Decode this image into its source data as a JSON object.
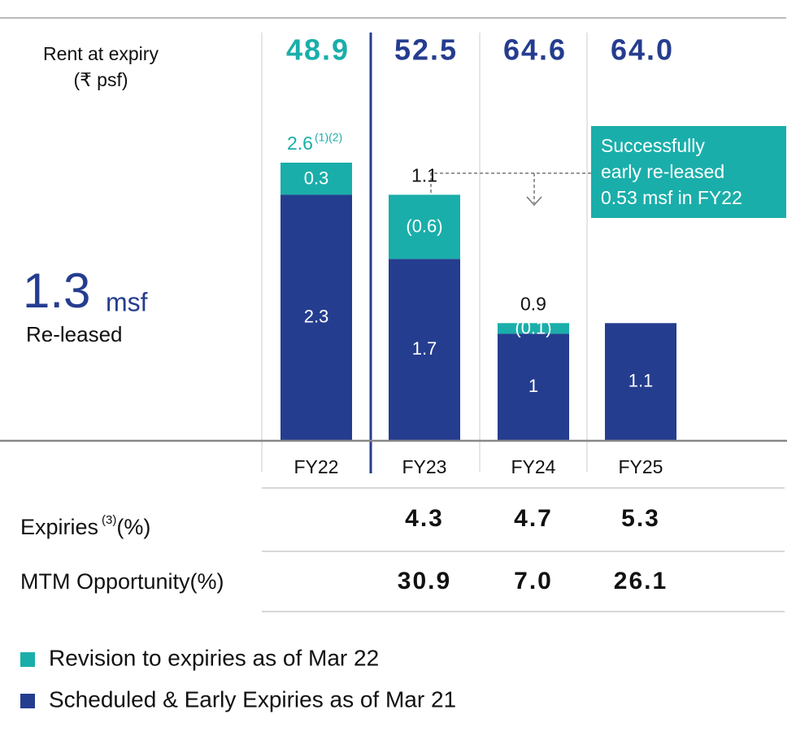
{
  "chart_data": {
    "type": "bar",
    "row_label": [
      "Rent at expiry",
      "(₹ psf)"
    ],
    "rent_at_expiry": [
      "48.9",
      "52.5",
      "64.6",
      "64.0"
    ],
    "headline": {
      "value": "1.3",
      "unit": "msf",
      "label": "Re-leased"
    },
    "categories": [
      "FY22",
      "FY23",
      "FY24",
      "FY25"
    ],
    "series": [
      {
        "name": "Scheduled & Early Expiries as of Mar 21",
        "color": "#253d8f",
        "values": [
          2.3,
          1.7,
          1.0,
          1.1
        ]
      },
      {
        "name": "Revision to expiries as of Mar 22",
        "color": "#1aaeaa",
        "values": [
          0.3,
          -0.6,
          -0.1,
          null
        ],
        "value_labels": [
          "0.3",
          "(0.6)",
          "(0.1)",
          null
        ]
      }
    ],
    "totals": [
      2.6,
      1.1,
      0.9,
      null
    ],
    "total_note": "(1)(2)",
    "annotation": [
      "Successfully",
      "early re-leased",
      "0.53 msf in FY22"
    ],
    "expiries": {
      "label": "Expiries",
      "note": "(3)",
      "unit": "(%)",
      "values": [
        null,
        "4.3",
        "4.7",
        "5.3"
      ]
    },
    "mtm": {
      "label": "MTM Opportunity(%)",
      "values": [
        null,
        "30.9",
        "7.0",
        "26.1"
      ]
    }
  }
}
